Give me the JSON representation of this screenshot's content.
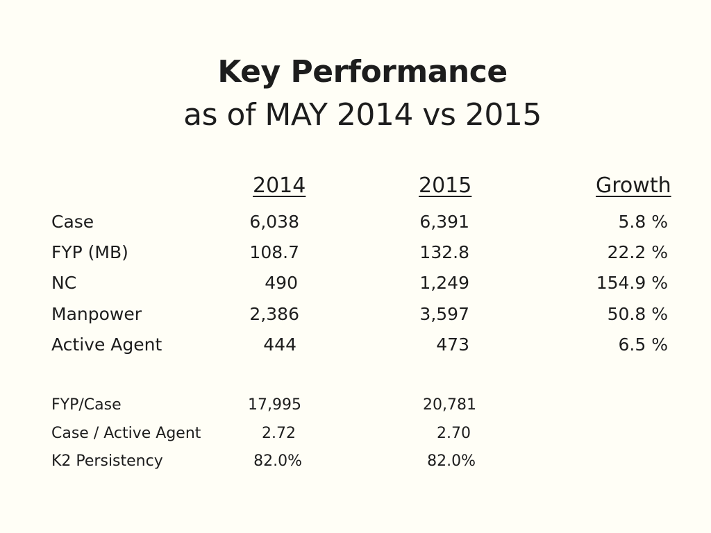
{
  "title": {
    "line1": "Key Performance",
    "line2": "as of MAY 2014 vs 2015"
  },
  "headers": {
    "col2014": "2014",
    "col2015": "2015",
    "growth": "Growth"
  },
  "rows": [
    {
      "label": "Case",
      "y2014": "6,038",
      "y2015": "6,391",
      "growth": "5.8 %"
    },
    {
      "label": "FYP (MB)",
      "y2014": "108.7",
      "y2015": "132.8",
      "growth": "22.2 %"
    },
    {
      "label": "NC",
      "y2014": "490",
      "y2015": "1,249",
      "growth": "154.9 %"
    },
    {
      "label": "Manpower",
      "y2014": "2,386",
      "y2015": "3,597",
      "growth": "50.8 %"
    },
    {
      "label": "Active Agent",
      "y2014": "444",
      "y2015": "473",
      "growth": "6.5 %"
    }
  ],
  "ratios": [
    {
      "label": "FYP/Case",
      "y2014": "17,995",
      "y2015": "20,781"
    },
    {
      "label": "Case / Active Agent",
      "y2014": "2.72",
      "y2015": "2.70"
    },
    {
      "label": "K2 Persistency",
      "y2014": "82.0%",
      "y2015": "82.0%"
    }
  ]
}
